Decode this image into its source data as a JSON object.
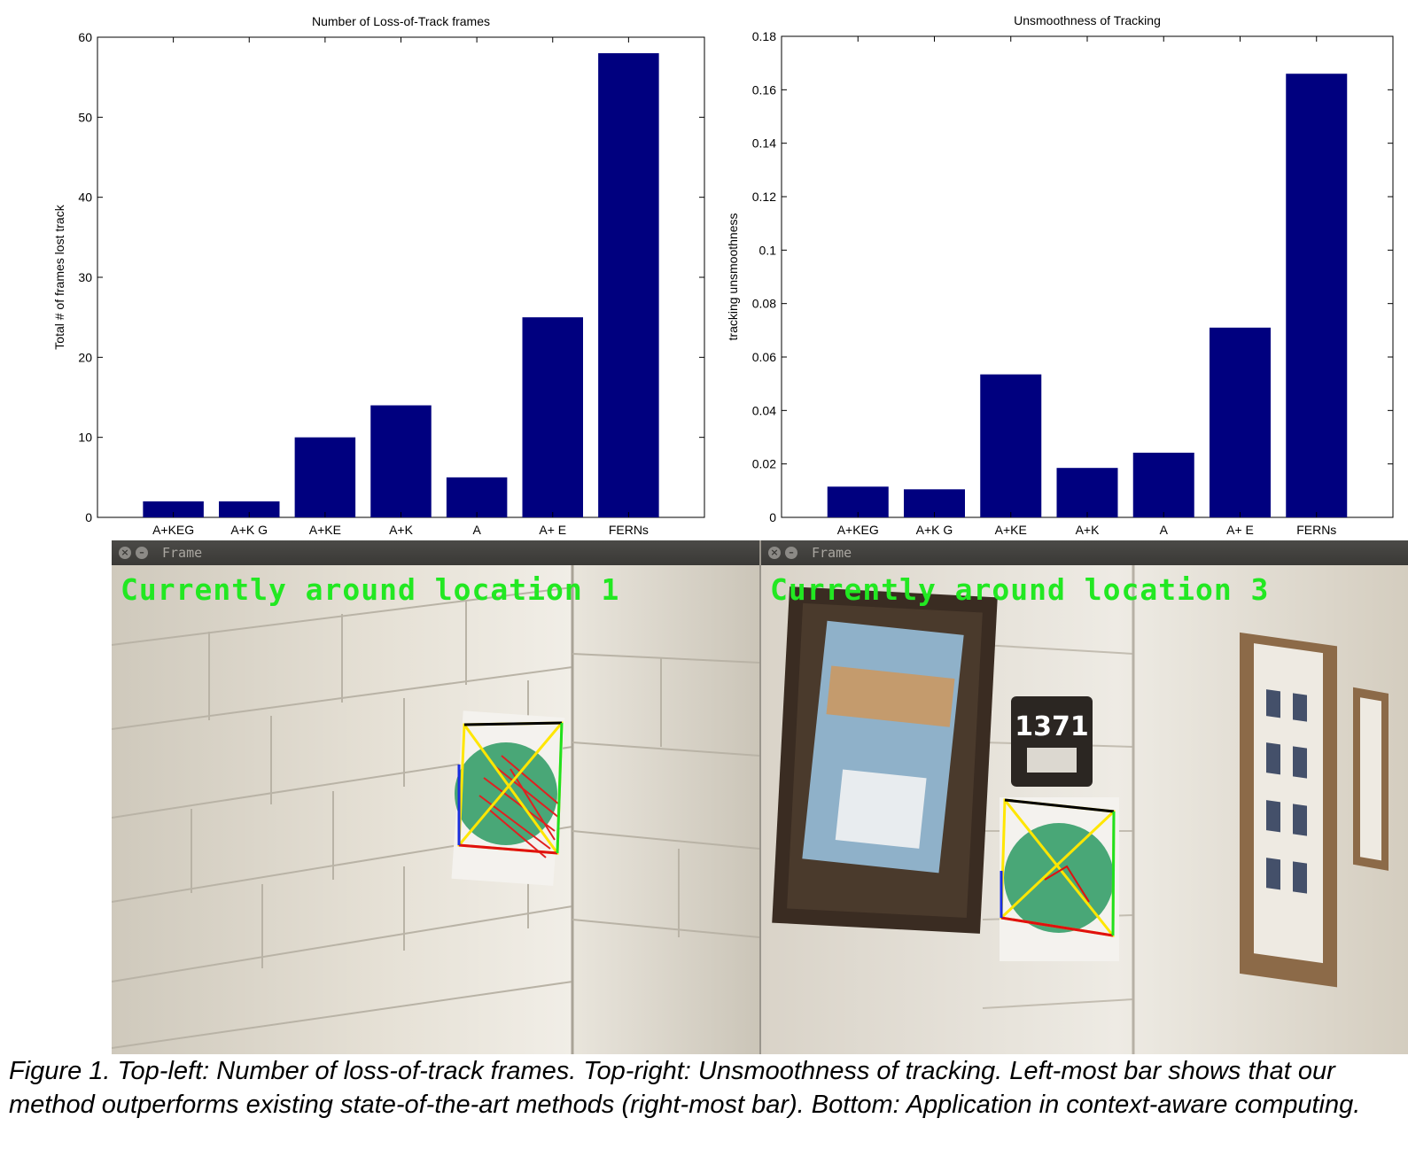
{
  "chart_data": [
    {
      "type": "bar",
      "title": "Number of Loss-of-Track frames",
      "xlabel": "",
      "ylabel": "Total # of frames lost track",
      "categories": [
        "A+KEG",
        "A+K G",
        "A+KE",
        "A+K",
        "A",
        "A+ E",
        "FERNs"
      ],
      "values": [
        2,
        2,
        10,
        14,
        5,
        25,
        58
      ],
      "ylim": [
        0,
        60
      ],
      "yticks": [
        0,
        10,
        20,
        30,
        40,
        50,
        60
      ],
      "ytick_labels": [
        "0",
        "10",
        "20",
        "30",
        "40",
        "50",
        "60"
      ],
      "bar_color": "#00007f",
      "grid": false
    },
    {
      "type": "bar",
      "title": "Unsmoothness of Tracking",
      "xlabel": "",
      "ylabel": "tracking unsmoothness",
      "categories": [
        "A+KEG",
        "A+K G",
        "A+KE",
        "A+K",
        "A",
        "A+ E",
        "FERNs"
      ],
      "values": [
        0.0115,
        0.0105,
        0.0535,
        0.0185,
        0.0242,
        0.071,
        0.166
      ],
      "ylim": [
        0,
        0.18
      ],
      "yticks": [
        0,
        0.02,
        0.04,
        0.06,
        0.08,
        0.1,
        0.12,
        0.14,
        0.16,
        0.18
      ],
      "ytick_labels": [
        "0",
        "0.02",
        "0.04",
        "0.06",
        "0.08",
        "0.1",
        "0.12",
        "0.14",
        "0.16",
        "0.18"
      ],
      "bar_color": "#00007f",
      "grid": false
    }
  ],
  "frames": [
    {
      "window_title": "Frame",
      "overlay": "Currently around location 1"
    },
    {
      "window_title": "Frame",
      "overlay": "Currently around location 3",
      "door_sign": "1371"
    }
  ],
  "caption": "Figure 1. Top-left: Number of loss-of-track frames. Top-right: Unsmoothness of tracking. Left-most bar shows that our method outperforms existing state-of-the-art methods (right-most bar). Bottom: Application in context-aware computing."
}
